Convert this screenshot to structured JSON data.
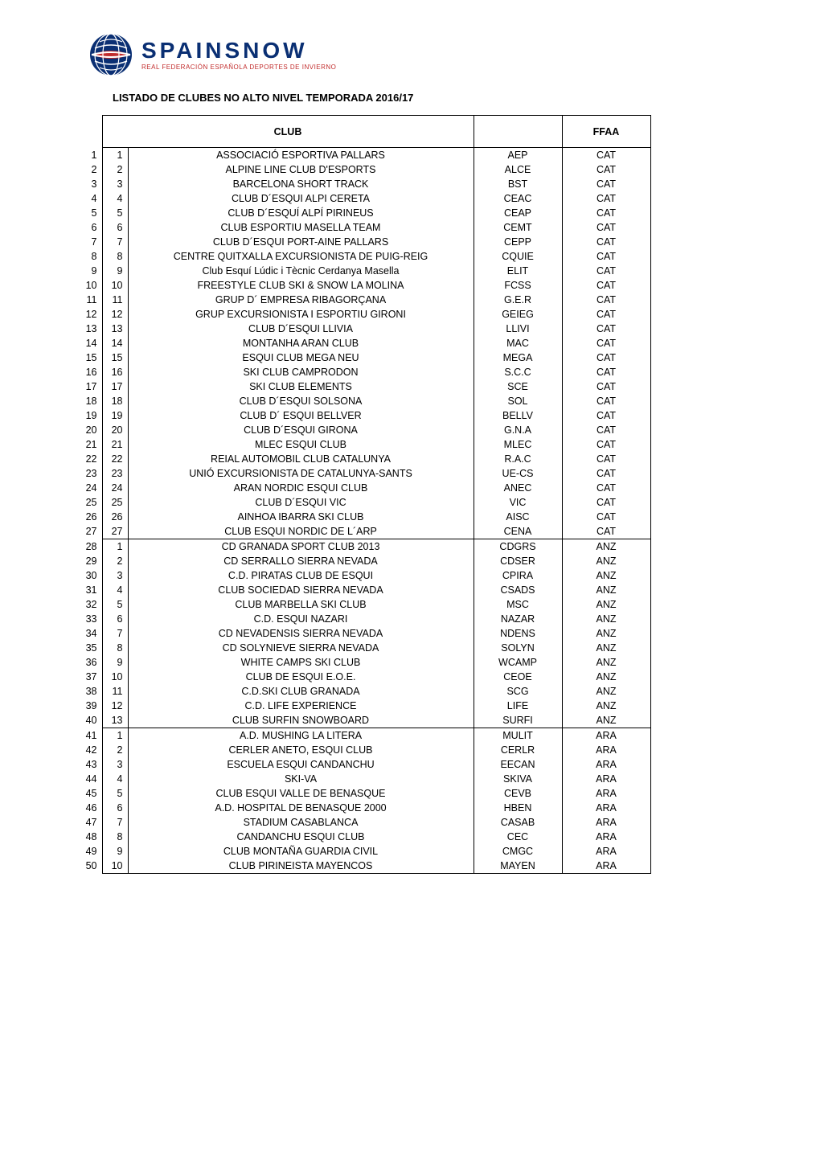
{
  "logo": {
    "main": "SPAINSNOW",
    "sub": "REAL FEDERACIÓN ESPAÑOLA DEPORTES DE INVIERNO"
  },
  "title": "LISTADO DE  CLUBES NO ALTO NIVEL TEMPORADA 2016/17",
  "headers": {
    "club": "CLUB",
    "ffaa": "FFAA"
  },
  "colors": {
    "logo_blue": "#0a2f73",
    "logo_red": "#c22c2c",
    "border": "#000000",
    "background": "#ffffff"
  },
  "columns": [
    "idx1",
    "idx2",
    "club",
    "code",
    "ffaa"
  ],
  "groups": [
    {
      "rows": [
        [
          1,
          1,
          "ASSOCIACIÓ ESPORTIVA PALLARS",
          "AEP",
          "CAT"
        ],
        [
          2,
          2,
          "ALPINE LINE CLUB D'ESPORTS",
          "ALCE",
          "CAT"
        ],
        [
          3,
          3,
          "BARCELONA SHORT TRACK",
          "BST",
          "CAT"
        ],
        [
          4,
          4,
          "CLUB D´ESQUI ALPI CERETA",
          "CEAC",
          "CAT"
        ],
        [
          5,
          5,
          "CLUB D´ESQUÍ ALPÍ PIRINEUS",
          "CEAP",
          "CAT"
        ],
        [
          6,
          6,
          "CLUB ESPORTIU MASELLA TEAM",
          "CEMT",
          "CAT"
        ],
        [
          7,
          7,
          "CLUB D´ESQUI PORT-AINE PALLARS",
          "CEPP",
          "CAT"
        ],
        [
          8,
          8,
          "CENTRE QUITXALLA EXCURSIONISTA DE PUIG-REIG",
          "CQUIE",
          "CAT"
        ],
        [
          9,
          9,
          "Club Esquí Lúdic i Tècnic Cerdanya Masella",
          "ELIT",
          "CAT"
        ],
        [
          10,
          10,
          "FREESTYLE CLUB SKI & SNOW LA MOLINA",
          "FCSS",
          "CAT"
        ],
        [
          11,
          11,
          "GRUP D´ EMPRESA RIBAGORÇANA",
          "G.E.R",
          "CAT"
        ],
        [
          12,
          12,
          "GRUP EXCURSIONISTA I ESPORTIU GIRONI",
          "GEIEG",
          "CAT"
        ],
        [
          13,
          13,
          "CLUB D´ESQUI LLIVIA",
          "LLIVI",
          "CAT"
        ],
        [
          14,
          14,
          "MONTANHA ARAN CLUB",
          "MAC",
          "CAT"
        ],
        [
          15,
          15,
          "ESQUI CLUB MEGA NEU",
          "MEGA",
          "CAT"
        ],
        [
          16,
          16,
          "SKI CLUB CAMPRODON",
          "S.C.C",
          "CAT"
        ],
        [
          17,
          17,
          "SKI CLUB ELEMENTS",
          "SCE",
          "CAT"
        ],
        [
          18,
          18,
          "CLUB D´ESQUI SOLSONA",
          "SOL",
          "CAT"
        ],
        [
          19,
          19,
          "CLUB D´ ESQUI BELLVER",
          "BELLV",
          "CAT"
        ],
        [
          20,
          20,
          "CLUB D´ESQUI GIRONA",
          "G.N.A",
          "CAT"
        ],
        [
          21,
          21,
          "MLEC ESQUI CLUB",
          "MLEC",
          "CAT"
        ],
        [
          22,
          22,
          "REIAL AUTOMOBIL CLUB CATALUNYA",
          "R.A.C",
          "CAT"
        ],
        [
          23,
          23,
          "UNIÓ EXCURSIONISTA DE CATALUNYA-SANTS",
          "UE-CS",
          "CAT"
        ],
        [
          24,
          24,
          "ARAN NORDIC ESQUI CLUB",
          "ANEC",
          "CAT"
        ],
        [
          25,
          25,
          "CLUB D´ESQUI VIC",
          "VIC",
          "CAT"
        ],
        [
          26,
          26,
          "AINHOA IBARRA SKI CLUB",
          "AISC",
          "CAT"
        ],
        [
          27,
          27,
          "CLUB ESQUI NORDIC DE L´ARP",
          "CENA",
          "CAT"
        ]
      ]
    },
    {
      "rows": [
        [
          28,
          1,
          "CD GRANADA SPORT CLUB 2013",
          "CDGRS",
          "ANZ"
        ],
        [
          29,
          2,
          "CD SERRALLO SIERRA NEVADA",
          "CDSER",
          "ANZ"
        ],
        [
          30,
          3,
          "C.D. PIRATAS CLUB DE ESQUI",
          "CPIRA",
          "ANZ"
        ],
        [
          31,
          4,
          "CLUB SOCIEDAD SIERRA NEVADA",
          "CSADS",
          "ANZ"
        ],
        [
          32,
          5,
          "CLUB MARBELLA SKI CLUB",
          "MSC",
          "ANZ"
        ],
        [
          33,
          6,
          "C.D. ESQUI NAZARI",
          "NAZAR",
          "ANZ"
        ],
        [
          34,
          7,
          "CD NEVADENSIS SIERRA NEVADA",
          "NDENS",
          "ANZ"
        ],
        [
          35,
          8,
          "CD SOLYNIEVE SIERRA NEVADA",
          "SOLYN",
          "ANZ"
        ],
        [
          36,
          9,
          "WHITE CAMPS SKI CLUB",
          "WCAMP",
          "ANZ"
        ],
        [
          37,
          10,
          "CLUB DE ESQUI E.O.E.",
          "CEOE",
          "ANZ"
        ],
        [
          38,
          11,
          "C.D.SKI CLUB GRANADA",
          "SCG",
          "ANZ"
        ],
        [
          39,
          12,
          "C.D. LIFE EXPERIENCE",
          "LIFE",
          "ANZ"
        ],
        [
          40,
          13,
          "CLUB SURFIN SNOWBOARD",
          "SURFI",
          "ANZ"
        ]
      ]
    },
    {
      "rows": [
        [
          41,
          1,
          "A.D. MUSHING LA LITERA",
          "MULIT",
          "ARA"
        ],
        [
          42,
          2,
          "CERLER ANETO, ESQUI CLUB",
          "CERLR",
          "ARA"
        ],
        [
          43,
          3,
          "ESCUELA ESQUI CANDANCHU",
          "EECAN",
          "ARA"
        ],
        [
          44,
          4,
          "SKI-VA",
          "SKIVA",
          "ARA"
        ],
        [
          45,
          5,
          "CLUB ESQUI VALLE DE BENASQUE",
          "CEVB",
          "ARA"
        ],
        [
          46,
          6,
          "A.D. HOSPITAL DE BENASQUE 2000",
          "HBEN",
          "ARA"
        ],
        [
          47,
          7,
          "STADIUM CASABLANCA",
          "CASAB",
          "ARA"
        ],
        [
          48,
          8,
          "CANDANCHU ESQUI CLUB",
          "CEC",
          "ARA"
        ],
        [
          49,
          9,
          "CLUB MONTAÑA GUARDIA CIVIL",
          "CMGC",
          "ARA"
        ],
        [
          50,
          10,
          "CLUB PIRINEISTA MAYENCOS",
          "MAYEN",
          "ARA"
        ]
      ]
    }
  ]
}
